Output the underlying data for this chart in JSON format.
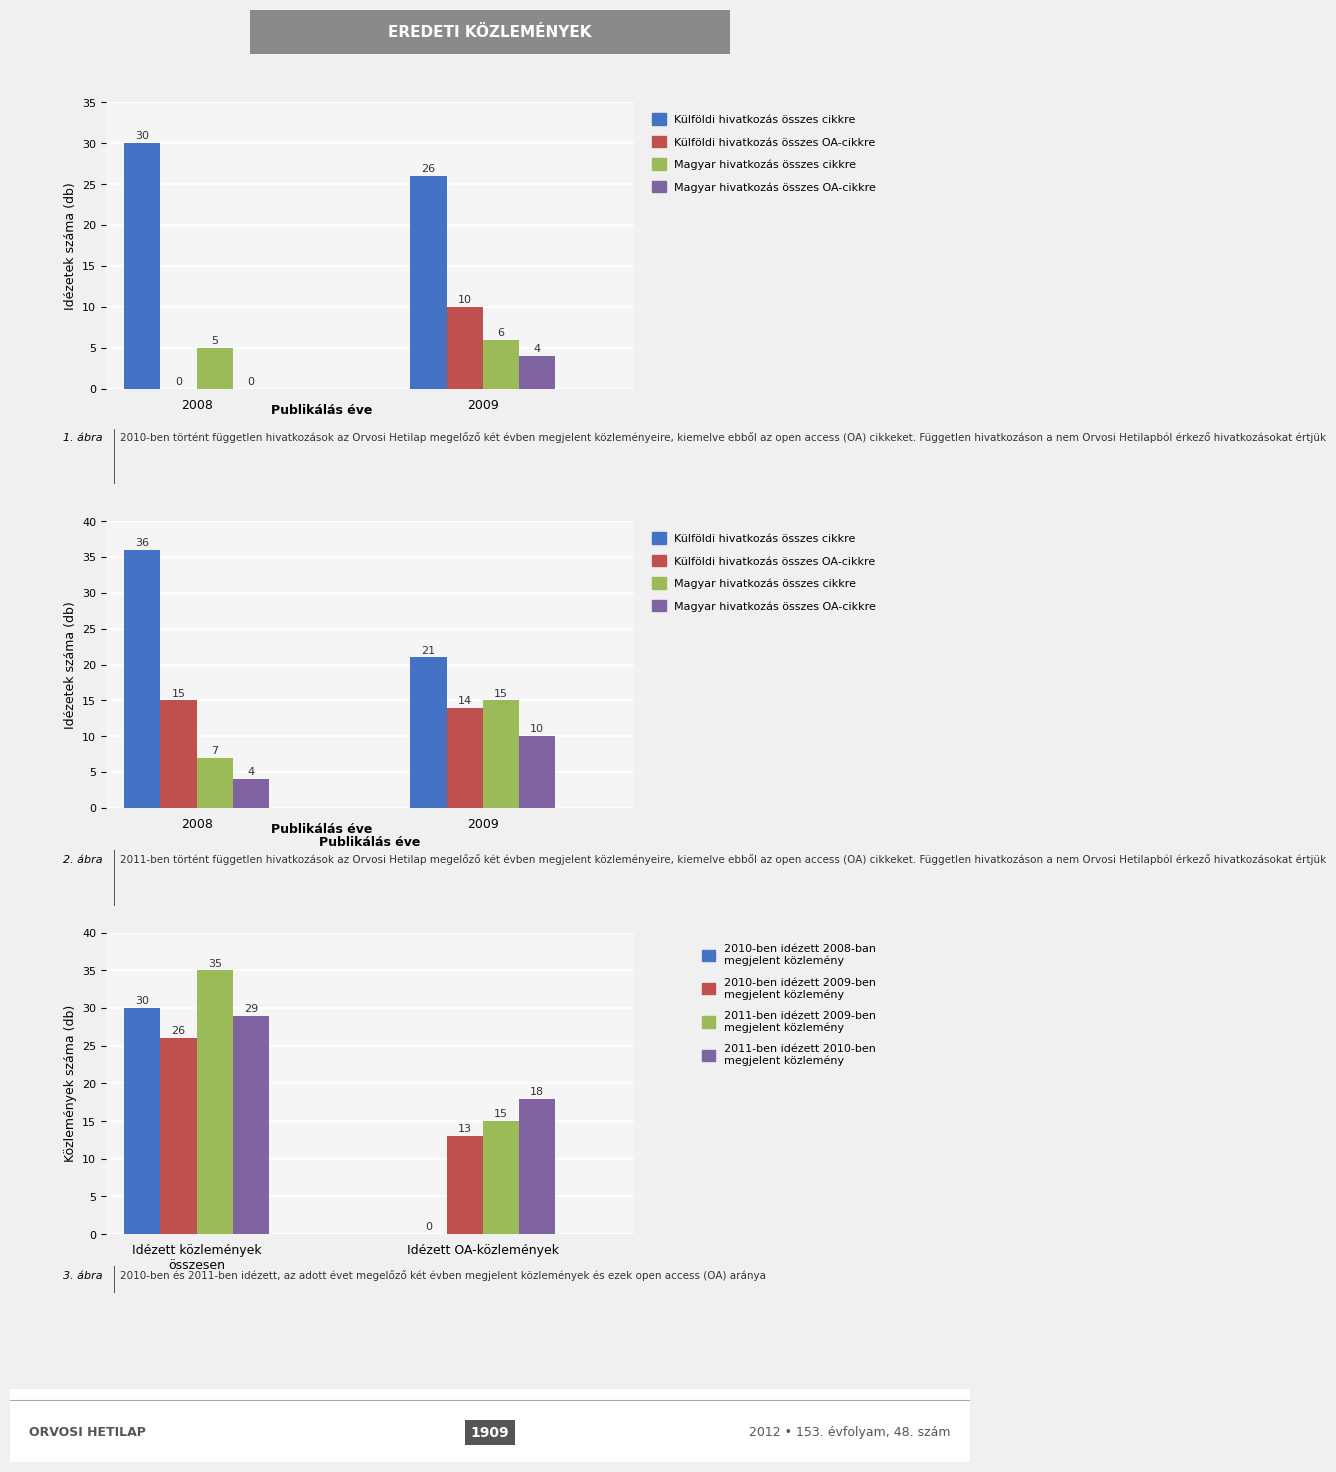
{
  "header_text": "EREDETI KÖZLEMÉNYEK",
  "header_bg": "#8a8a8a",
  "header_text_color": "#ffffff",
  "page_bg": "#f0f0f0",
  "chart1": {
    "ylabel": "Idézetek száma (db)",
    "xlabel": "Publikálás éve",
    "ylim": [
      0,
      35
    ],
    "yticks": [
      0,
      5,
      10,
      15,
      20,
      25,
      30,
      35
    ],
    "categories": [
      "2008",
      "2009"
    ],
    "series": [
      {
        "label": "Külföldi hivatkozás összes cikkre",
        "color": "#4472c4",
        "values": [
          30,
          26
        ]
      },
      {
        "label": "Külföldi hivatkozás összes OA-cikkre",
        "color": "#c0504d",
        "values": [
          0,
          10
        ]
      },
      {
        "label": "Magyar hivatkozás összes cikkre",
        "color": "#9bbb59",
        "values": [
          5,
          6
        ]
      },
      {
        "label": "Magyar hivatkozás összes OA-cikkre",
        "color": "#8064a2",
        "values": [
          0,
          4
        ]
      }
    ],
    "caption_num": "1. ábra",
    "caption": "2010-ben történt független hivatkozások az Orvosi Hetilap megelőző két évben megjelent közleményeire, kiemelve ebből az open access (OA) cikkeket. Független hivatkozáson a nem Orvosi Hetilapból érkező hivatkozásokat értjük"
  },
  "chart2": {
    "ylabel": "Idézetek száma (db)",
    "xlabel": "Publikálás éve",
    "ylim": [
      0,
      40
    ],
    "yticks": [
      0,
      5,
      10,
      15,
      20,
      25,
      30,
      35,
      40
    ],
    "categories": [
      "2008",
      "2009"
    ],
    "series": [
      {
        "label": "Külföldi hivatkozás összes cikkre",
        "color": "#4472c4",
        "values": [
          36,
          21
        ]
      },
      {
        "label": "Külföldi hivatkozás összes OA-cikkre",
        "color": "#c0504d",
        "values": [
          15,
          14
        ]
      },
      {
        "label": "Magyar hivatkozás összes cikkre",
        "color": "#9bbb59",
        "values": [
          7,
          15
        ]
      },
      {
        "label": "Magyar hivatkozás összes OA-cikkre",
        "color": "#8064a2",
        "values": [
          4,
          10
        ]
      }
    ],
    "caption_num": "2. ábra",
    "caption": "2011-ben történt független hivatkozások az Orvosi Hetilap megelőző két évben megjelent közleményeire, kiemelve ebből az open access (OA) cikkeket. Független hivatkozáson a nem Orvosi Hetilapból érkező hivatkozásokat értjük"
  },
  "chart3": {
    "ylabel": "Közlemények száma (db)",
    "xlabel": "",
    "ylim": [
      0,
      40
    ],
    "yticks": [
      0,
      5,
      10,
      15,
      20,
      25,
      30,
      35,
      40
    ],
    "categories": [
      "Idézett közlemények\nösszesen",
      "Idézett OA-közlemények"
    ],
    "series": [
      {
        "label": "2010-ben idézett 2008-ban\nmegjelent közlemény",
        "color": "#4472c4",
        "values": [
          30,
          0
        ]
      },
      {
        "label": "2010-ben idézett 2009-ben\nmegjelent közlemény",
        "color": "#c0504d",
        "values": [
          26,
          13
        ]
      },
      {
        "label": "2011-ben idézett 2009-ben\nmegjelent közlemény",
        "color": "#9bbb59",
        "values": [
          35,
          15
        ]
      },
      {
        "label": "2011-ben idézett 2010-ben\nmegjelent közlemény",
        "color": "#8064a2",
        "values": [
          29,
          18
        ]
      }
    ],
    "caption_num": "3. ábra",
    "caption": "2010-ben és 2011-ben idézett, az adott évet megelőző két évben megjelent közlemények és ezek open access (OA) aránya"
  },
  "footer_left": "ORVOSI HETILAP",
  "footer_center": "1909",
  "footer_right": "2012 • 153. évfolyam, 48. szám"
}
